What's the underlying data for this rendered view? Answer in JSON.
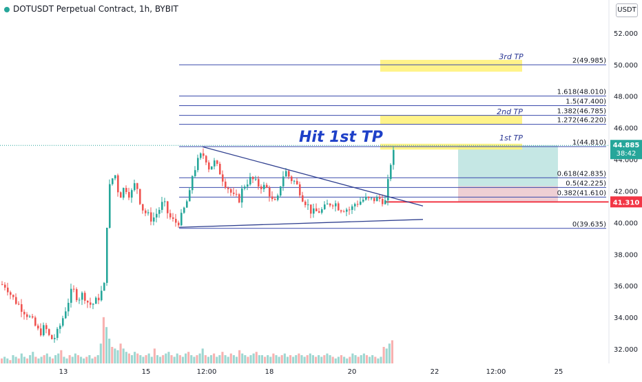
{
  "header": {
    "title": "DOTUSDT Perpetual Contract, 1h, BYBIT",
    "currency": "USDT"
  },
  "colors": {
    "up": "#26a69a",
    "down": "#ef5350",
    "fib_line": "#3949ab",
    "trendline": "#2f3f8f",
    "tp_box": "#fff176",
    "profit_zone": "#b2dfdb",
    "loss_zone": "#f8c9cf",
    "stop_line": "#f23645",
    "annotation": "#283593"
  },
  "chart_data": {
    "type": "candlestick",
    "ylim": [
      31.0,
      54.0
    ],
    "yticks": [
      "32.000",
      "34.000",
      "36.000",
      "38.000",
      "40.000",
      "42.000",
      "44.000",
      "46.000",
      "48.000",
      "50.000",
      "52.000"
    ],
    "xticks": [
      "13",
      "15",
      "12:00",
      "18",
      "20",
      "22",
      "12:00",
      "25"
    ],
    "fib_levels": [
      {
        "label": "0(39.635)",
        "value": 39.635
      },
      {
        "label": "0.382(41.610)",
        "value": 41.61
      },
      {
        "label": "0.5(42.225)",
        "value": 42.225
      },
      {
        "label": "0.618(42.835)",
        "value": 42.835
      },
      {
        "label": "1(44.810)",
        "value": 44.81
      },
      {
        "label": "1.272(46.220)",
        "value": 46.22
      },
      {
        "label": "1.382(46.785)",
        "value": 46.785
      },
      {
        "label": "1.5(47.400)",
        "value": 47.4
      },
      {
        "label": "1.618(48.010)",
        "value": 48.01
      },
      {
        "label": "2(49.985)",
        "value": 49.985
      }
    ],
    "targets": [
      {
        "label": "1st TP",
        "value": 44.81
      },
      {
        "label": "2nd TP",
        "value": 46.5
      },
      {
        "label": "3rd TP",
        "value": 49.985
      }
    ],
    "headline": "Hit 1st TP",
    "current_price": {
      "value": 44.885,
      "label": "44.885",
      "countdown": "38:42"
    },
    "stop_price": {
      "value": 41.31,
      "label": "41.310"
    },
    "profit_zone": [
      41.31,
      44.88
    ],
    "loss_zone": [
      41.31,
      42.3
    ],
    "upper_trendline": [
      [
        0.0,
        44.8
      ],
      [
        1.0,
        41.05
      ]
    ],
    "lower_trendline": [
      [
        0.0,
        39.7
      ],
      [
        1.0,
        40.2
      ]
    ],
    "close_path": [
      [
        0,
        36.1
      ],
      [
        8,
        36.0
      ],
      [
        16,
        35.3
      ],
      [
        24,
        34.9
      ],
      [
        32,
        34.5
      ],
      [
        40,
        34.1
      ],
      [
        48,
        33.6
      ],
      [
        56,
        33.0
      ],
      [
        64,
        33.4
      ],
      [
        72,
        32.6
      ],
      [
        80,
        32.8
      ],
      [
        88,
        33.7
      ],
      [
        96,
        34.8
      ],
      [
        104,
        35.8
      ],
      [
        112,
        35.2
      ],
      [
        120,
        35.5
      ],
      [
        128,
        34.8
      ],
      [
        136,
        34.9
      ],
      [
        144,
        35.4
      ],
      [
        150,
        36.0
      ],
      [
        152,
        38.0
      ],
      [
        156,
        41.8
      ],
      [
        160,
        42.7
      ],
      [
        166,
        43.0
      ],
      [
        172,
        41.6
      ],
      [
        180,
        42.3
      ],
      [
        188,
        41.7
      ],
      [
        196,
        42.6
      ],
      [
        204,
        41.0
      ],
      [
        212,
        40.5
      ],
      [
        220,
        40.2
      ],
      [
        228,
        40.7
      ],
      [
        236,
        41.3
      ],
      [
        244,
        40.4
      ],
      [
        252,
        40.0
      ],
      [
        260,
        40.1
      ],
      [
        268,
        41.1
      ],
      [
        274,
        41.8
      ],
      [
        278,
        43.0
      ],
      [
        284,
        43.7
      ],
      [
        290,
        44.2
      ],
      [
        296,
        44.3
      ],
      [
        302,
        43.5
      ],
      [
        310,
        43.8
      ],
      [
        318,
        43.2
      ],
      [
        324,
        42.6
      ],
      [
        330,
        42.2
      ],
      [
        338,
        41.6
      ],
      [
        346,
        41.5
      ],
      [
        352,
        42.3
      ],
      [
        358,
        42.6
      ],
      [
        364,
        42.8
      ],
      [
        372,
        42.4
      ],
      [
        380,
        42.3
      ],
      [
        388,
        42.1
      ],
      [
        396,
        41.1
      ],
      [
        402,
        41.5
      ],
      [
        408,
        42.9
      ],
      [
        414,
        43.2
      ],
      [
        420,
        42.8
      ],
      [
        426,
        42.6
      ],
      [
        432,
        42.2
      ],
      [
        438,
        41.6
      ],
      [
        444,
        41.2
      ],
      [
        452,
        40.6
      ],
      [
        460,
        40.7
      ],
      [
        468,
        40.8
      ],
      [
        476,
        41.2
      ],
      [
        484,
        41.3
      ],
      [
        492,
        40.9
      ],
      [
        500,
        40.9
      ],
      [
        508,
        40.8
      ],
      [
        514,
        41.2
      ],
      [
        520,
        41.3
      ],
      [
        528,
        41.5
      ],
      [
        536,
        41.4
      ],
      [
        544,
        41.5
      ],
      [
        552,
        41.5
      ],
      [
        558,
        41.3
      ],
      [
        562,
        42.5
      ],
      [
        566,
        43.8
      ],
      [
        570,
        44.6
      ],
      [
        571,
        44.885
      ]
    ],
    "volume_profile": [
      3,
      4,
      3,
      2,
      5,
      4,
      3,
      6,
      4,
      3,
      5,
      7,
      4,
      3,
      4,
      5,
      6,
      4,
      3,
      5,
      6,
      8,
      4,
      3,
      5,
      4,
      6,
      5,
      4,
      3,
      4,
      5,
      3,
      4,
      5,
      12,
      28,
      22,
      15,
      10,
      9,
      8,
      12,
      9,
      7,
      6,
      5,
      7,
      6,
      5,
      4,
      5,
      6,
      4,
      9,
      5,
      4,
      5,
      6,
      7,
      5,
      4,
      6,
      5,
      4,
      6,
      7,
      5,
      4,
      5,
      6,
      9,
      5,
      4,
      5,
      6,
      4,
      5,
      7,
      5,
      4,
      6,
      5,
      4,
      8,
      6,
      5,
      4,
      5,
      6,
      7,
      5,
      5,
      4,
      5,
      4,
      6,
      5,
      4,
      5,
      6,
      4,
      5,
      4,
      5,
      6,
      5,
      4,
      5,
      6,
      5,
      4,
      5,
      4,
      5,
      6,
      5,
      4,
      3,
      4,
      5,
      4,
      3,
      4,
      6,
      5,
      4,
      5,
      6,
      5,
      4,
      5,
      4,
      3,
      4,
      10,
      9,
      12,
      14
    ]
  }
}
